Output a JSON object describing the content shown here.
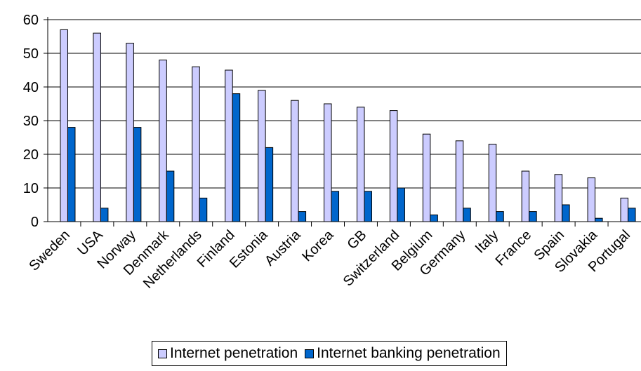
{
  "chart_data": {
    "type": "bar",
    "title": "",
    "xlabel": "",
    "ylabel": "",
    "ylim": [
      0,
      60
    ],
    "yticks": [
      0,
      10,
      20,
      30,
      40,
      50,
      60
    ],
    "grid": true,
    "legend_position": "bottom",
    "categories": [
      "Sweden",
      "USA",
      "Norway",
      "Denmark",
      "Netherlands",
      "Finland",
      "Estonia",
      "Austria",
      "Korea",
      "GB",
      "Switzerland",
      "Belgium",
      "Germany",
      "Italy",
      "France",
      "Spain",
      "Slovakia",
      "Portugal"
    ],
    "series": [
      {
        "name": "Internet penetration",
        "color": "#CCCCFF",
        "values": [
          57,
          56,
          53,
          48,
          46,
          45,
          39,
          36,
          35,
          34,
          33,
          26,
          24,
          23,
          15,
          14,
          13,
          7
        ]
      },
      {
        "name": "Internet banking penetration",
        "color": "#0066CC",
        "values": [
          28,
          4,
          28,
          15,
          7,
          38,
          22,
          3,
          9,
          9,
          10,
          2,
          4,
          3,
          3,
          5,
          1,
          4
        ]
      }
    ]
  }
}
